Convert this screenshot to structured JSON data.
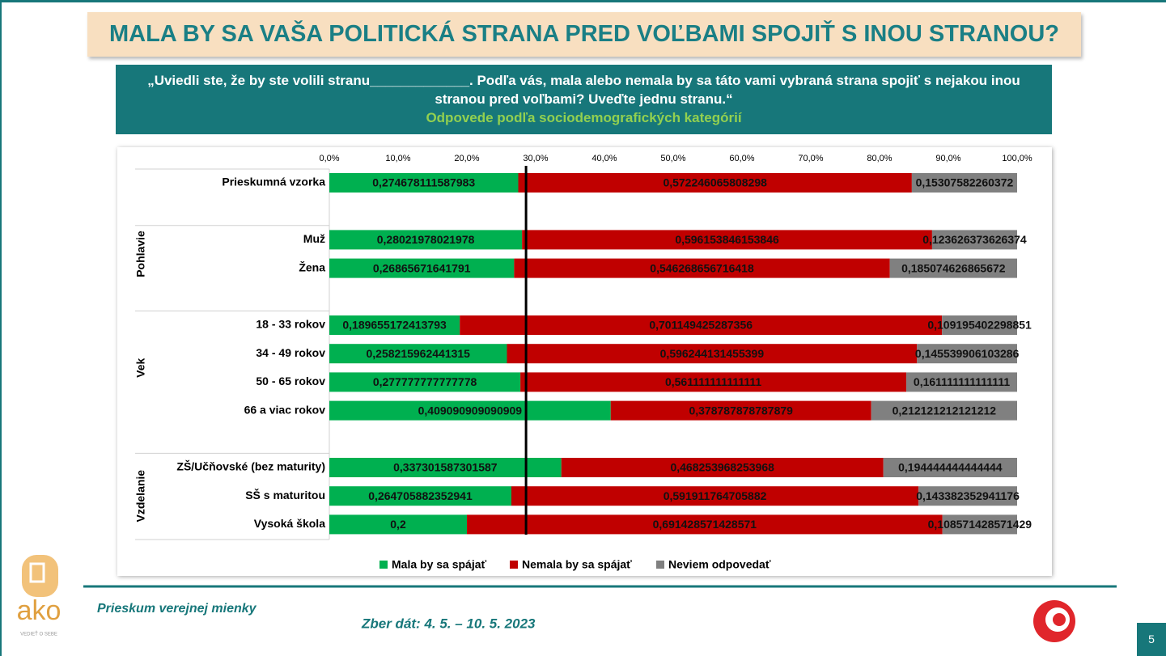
{
  "header": {
    "title": "MALA BY SA VAŠA POLITICKÁ STRANA PRED VOĽBAMI SPOJIŤ S INOU STRANOU?",
    "question": "„Uviedli ste, že by ste volili stranu_____________. Podľa vás, mala alebo nemala by sa táto vami vybraná strana spojiť s nejakou inou stranou pred voľbami? Uveďte jednu stranu.“",
    "subtitle": "Odpovede podľa sociodemografických kategórií"
  },
  "chart_data": {
    "type": "stacked_bar_horizontal",
    "categories": [
      "Prieskumná vzorka",
      null,
      "Muž",
      "Žena",
      null,
      "18 - 33 rokov",
      "34 - 49 rokov",
      "50 - 65 rokov",
      "66 a viac rokov",
      null,
      "ZŠ/Učňovské (bez maturity)",
      "SŠ s maturitou",
      "Vysoká škola"
    ],
    "group_labels": [
      "Pohlavie",
      "Vek",
      "Vzdelanie"
    ],
    "series": [
      {
        "name": "Mala by sa spájať",
        "color": "#00b050",
        "values": [
          0.274678111587983,
          null,
          0.28021978021978,
          0.26865671641791,
          null,
          0.189655172413793,
          0.258215962441315,
          0.277777777777778,
          0.409090909090909,
          null,
          0.337301587301587,
          0.264705882352941,
          0.2
        ],
        "value_labels": [
          "0,274678111587983",
          null,
          "0,28021978021978",
          "0,26865671641791",
          null,
          "0,189655172413793",
          "0,258215962441315",
          "0,277777777777778",
          "0,409090909090909",
          null,
          "0,337301587301587",
          "0,264705882352941",
          "0,2"
        ]
      },
      {
        "name": "Nemala by sa spájať",
        "color": "#c00000",
        "values": [
          0.572246065808298,
          null,
          0.596153846153846,
          0.546268656716418,
          null,
          0.701149425287356,
          0.596244131455399,
          0.561111111111111,
          0.378787878787879,
          null,
          0.468253968253968,
          0.591911764705882,
          0.691428571428571
        ],
        "value_labels": [
          "0,572246065808298",
          null,
          "0,596153846153846",
          "0,546268656716418",
          null,
          "0,701149425287356",
          "0,596244131455399",
          "0,561111111111111",
          "0,378787878787879",
          null,
          "0,468253968253968",
          "0,591911764705882",
          "0,691428571428571"
        ]
      },
      {
        "name": "Neviem odpovedať",
        "color": "#808080",
        "values": [
          0.15307582260372,
          null,
          0.123626373626374,
          0.185074626865672,
          null,
          0.109195402298851,
          0.145539906103286,
          0.161111111111111,
          0.212121212121212,
          null,
          0.194444444444444,
          0.143382352941176,
          0.108571428571429
        ],
        "value_labels": [
          "0,15307582260372",
          null,
          "0,123626373626374",
          "0,185074626865672",
          null,
          "0,109195402298851",
          "0,145539906103286",
          "0,161111111111111",
          "0,212121212121212",
          null,
          "0,194444444444444",
          "0,143382352941176",
          "0,108571428571429"
        ]
      }
    ],
    "xlim": [
      0,
      1
    ],
    "xticks": [
      {
        "value": 0,
        "label": "0,0%"
      },
      {
        "value": 0.1,
        "label": "10,0%"
      },
      {
        "value": 0.2,
        "label": "20,0%"
      },
      {
        "value": 0.3,
        "label": "30,0%"
      },
      {
        "value": 0.4,
        "label": "40,0%"
      },
      {
        "value": 0.5,
        "label": "50,0%"
      },
      {
        "value": 0.6,
        "label": "60,0%"
      },
      {
        "value": 0.7,
        "label": "70,0%"
      },
      {
        "value": 0.8,
        "label": "80,0%"
      },
      {
        "value": 0.9,
        "label": "90,0%"
      },
      {
        "value": 1,
        "label": "100,0%"
      }
    ],
    "reference_line": 0.286,
    "legend": "bottom"
  },
  "footer": {
    "survey": "Prieskum verejnej mienky",
    "dates": "Zber dát: 4. 5. – 10. 5. 2023",
    "page": "5",
    "logo": "ako",
    "logo_tagline": "VEDIEŤ O SEBE"
  }
}
